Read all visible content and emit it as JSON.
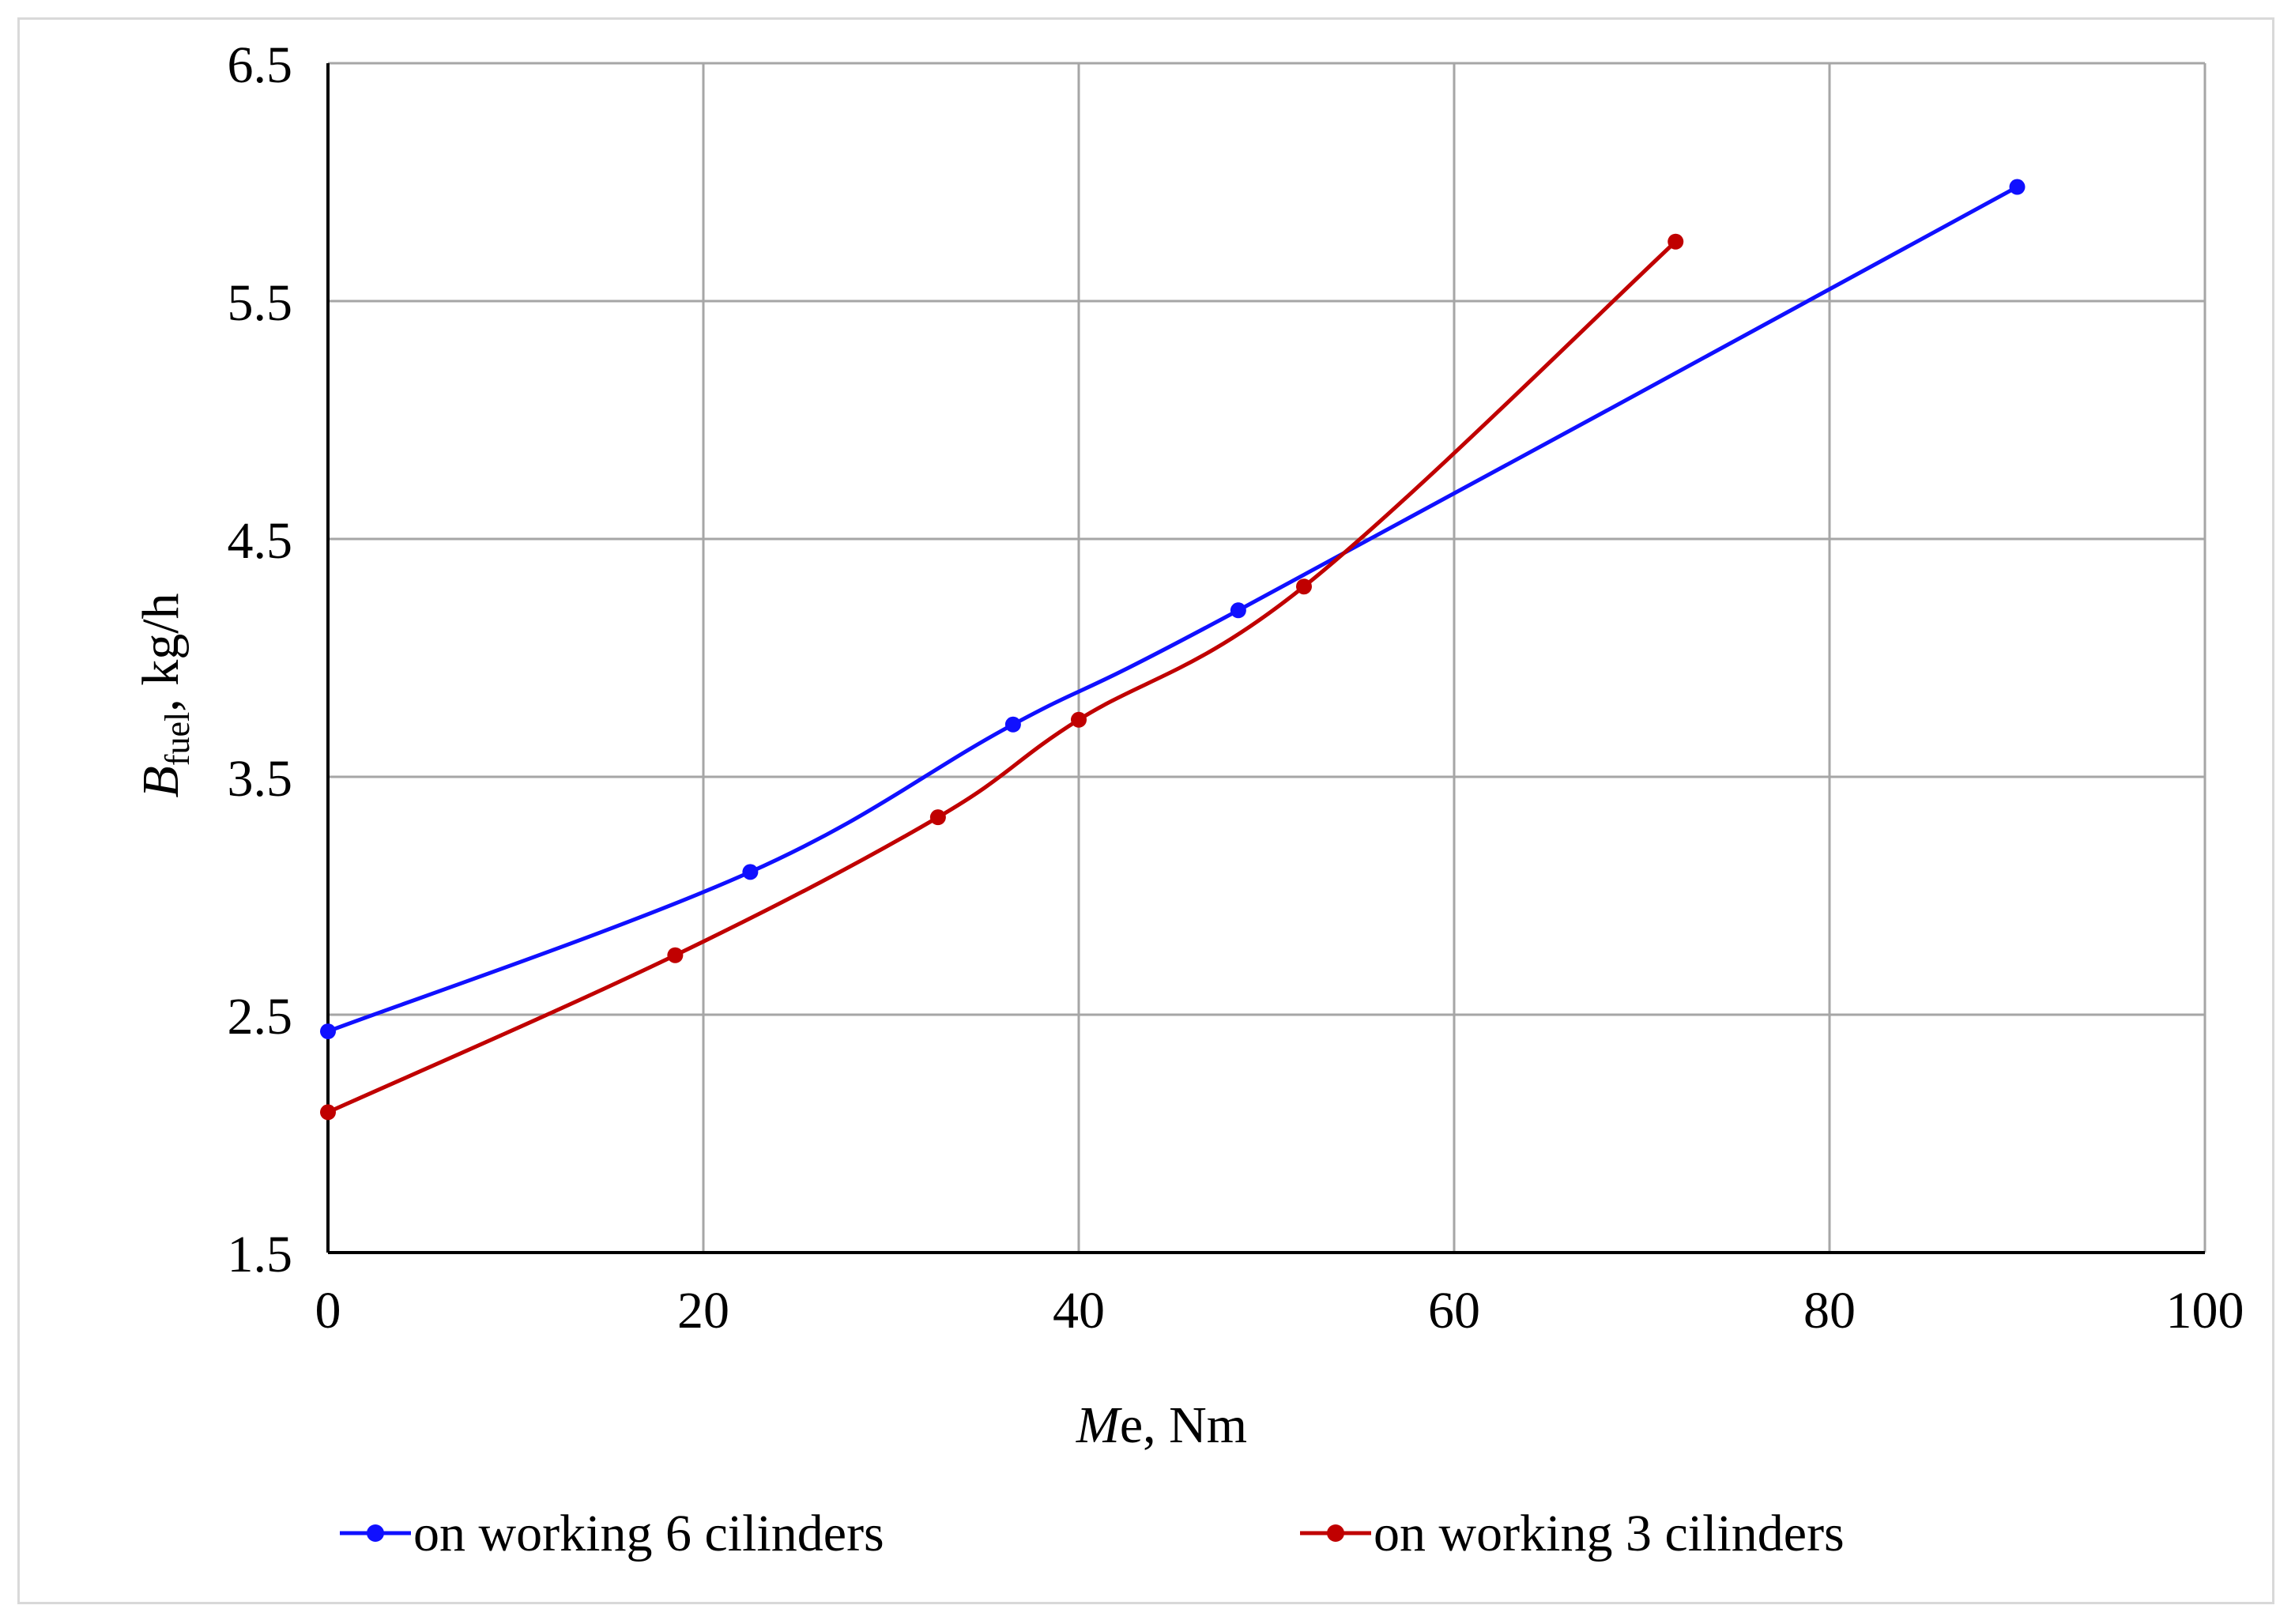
{
  "chart_data": {
    "type": "line",
    "xlabel": {
      "italic": "M",
      "rest": "e, Nm"
    },
    "ylabel": {
      "italic": "B",
      "sub": "fuel",
      "rest": ", kg/h"
    },
    "xlim": [
      0,
      100
    ],
    "ylim": [
      1.5,
      6.5
    ],
    "xticks": [
      0,
      20,
      40,
      60,
      80,
      100
    ],
    "yticks": [
      1.5,
      2.5,
      3.5,
      4.5,
      5.5,
      6.5
    ],
    "ytick_labels": [
      "1.5",
      "2.5",
      "3.5",
      "4.5",
      "5.5",
      "6.5"
    ],
    "grid": true,
    "legend_position": "bottom",
    "series": [
      {
        "name": "on working 6 cilinders",
        "color": "#1010ff",
        "x": [
          0,
          22.5,
          36.5,
          48.5,
          90
        ],
        "y": [
          2.43,
          3.1,
          3.72,
          4.2,
          5.98
        ]
      },
      {
        "name": "on working 3 cilinders",
        "color": "#c00000",
        "x": [
          0,
          18.5,
          32.5,
          40,
          52,
          71.8
        ],
        "y": [
          2.09,
          2.75,
          3.33,
          3.74,
          4.3,
          5.75
        ]
      }
    ]
  }
}
